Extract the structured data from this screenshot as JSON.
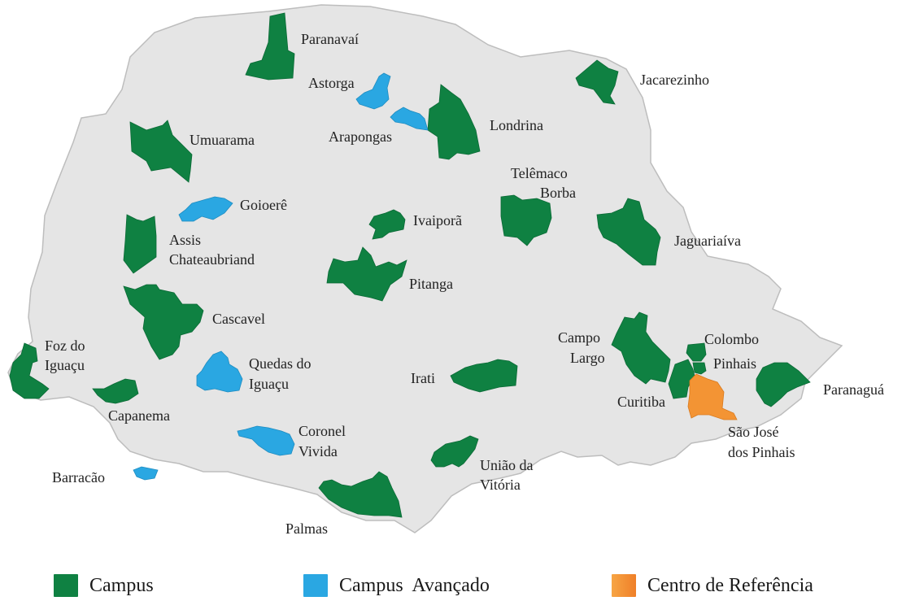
{
  "colors": {
    "state_fill": "#e5e5e5",
    "state_border": "#bdbdbd",
    "campus": "#0f8142",
    "campus_avancado": "#2aa7e2",
    "centro_referencia": "#f39434",
    "label_text": "#222222"
  },
  "legend": {
    "campus": "Campus",
    "campus_avancado": "Campus  Avançado",
    "centro_referencia": "Centro de Referência"
  },
  "labels": {
    "paranavai": "Paranavaí",
    "astorga": "Astorga",
    "arapongas": "Arapongas",
    "jacarezinho": "Jacarezinho",
    "londrina": "Londrina",
    "umuarama": "Umuarama",
    "telemaco_1": "Telêmaco",
    "telemaco_2": "Borba",
    "goioere": "Goioerê",
    "ivaipora": "Ivaiporã",
    "jaguariaiva": "Jaguariaíva",
    "assis_1": "Assis",
    "assis_2": "Chateaubriand",
    "pitanga": "Pitanga",
    "cascavel": "Cascavel",
    "campo_largo_1": "Campo",
    "campo_largo_2": "Largo",
    "colombo": "Colombo",
    "pinhais": "Pinhais",
    "foz_1": "Foz do",
    "foz_2": "Iguaçu",
    "quedas_1": "Quedas do",
    "quedas_2": "Iguaçu",
    "irati": "Irati",
    "paranagua": "Paranaguá",
    "curitiba": "Curitiba",
    "capanema": "Capanema",
    "sjp_1": "São José",
    "sjp_2": "dos Pinhais",
    "coronel_1": "Coronel",
    "coronel_2": "Vivida",
    "uniao_1": "União da",
    "uniao_2": "Vitória",
    "barracao": "Barracão",
    "palmas": "Palmas"
  }
}
